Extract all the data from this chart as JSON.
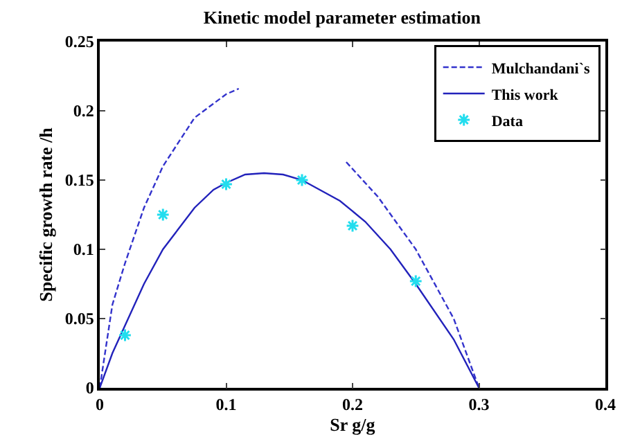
{
  "chart_data": {
    "type": "line",
    "title": "Kinetic model parameter estimation",
    "xlabel": "Sr g/g",
    "ylabel": "Specific growth rate /h",
    "xlim": [
      0,
      0.4
    ],
    "xticks": [
      0,
      0.1,
      0.2,
      0.3,
      0.4
    ],
    "ylim": [
      0,
      0.25
    ],
    "yticks": [
      0,
      0.05,
      0.1,
      0.15,
      0.2,
      0.25
    ],
    "grid": false,
    "legend": "top right",
    "series": [
      {
        "name": "Mulchandani`s",
        "line_style": "dashed",
        "marker": "none",
        "color": "#3333cc",
        "x": [
          0,
          0.01,
          0.02,
          0.035,
          0.05,
          0.075,
          0.1,
          0.11,
          0.15,
          0.195,
          0.22,
          0.25,
          0.28,
          0.3
        ],
        "values": [
          0,
          0.06,
          0.09,
          0.13,
          0.16,
          0.195,
          0.212,
          0.216,
          null,
          0.163,
          0.138,
          0.1,
          0.05,
          0
        ]
      },
      {
        "name": "This work",
        "line_style": "solid",
        "marker": "none",
        "color": "#2222bb",
        "x": [
          0,
          0.01,
          0.02,
          0.035,
          0.05,
          0.075,
          0.09,
          0.1,
          0.115,
          0.13,
          0.145,
          0.16,
          0.19,
          0.21,
          0.23,
          0.25,
          0.28,
          0.3
        ],
        "values": [
          0,
          0.025,
          0.045,
          0.075,
          0.1,
          0.13,
          0.143,
          0.148,
          0.154,
          0.155,
          0.154,
          0.15,
          0.135,
          0.12,
          0.1,
          0.075,
          0.035,
          0
        ]
      },
      {
        "name": "Data",
        "type": "scatter",
        "marker": "cross",
        "color": "#22ddee",
        "x": [
          0.02,
          0.05,
          0.1,
          0.16,
          0.2,
          0.25
        ],
        "values": [
          0.038,
          0.125,
          0.147,
          0.15,
          0.117,
          0.077
        ]
      }
    ]
  }
}
